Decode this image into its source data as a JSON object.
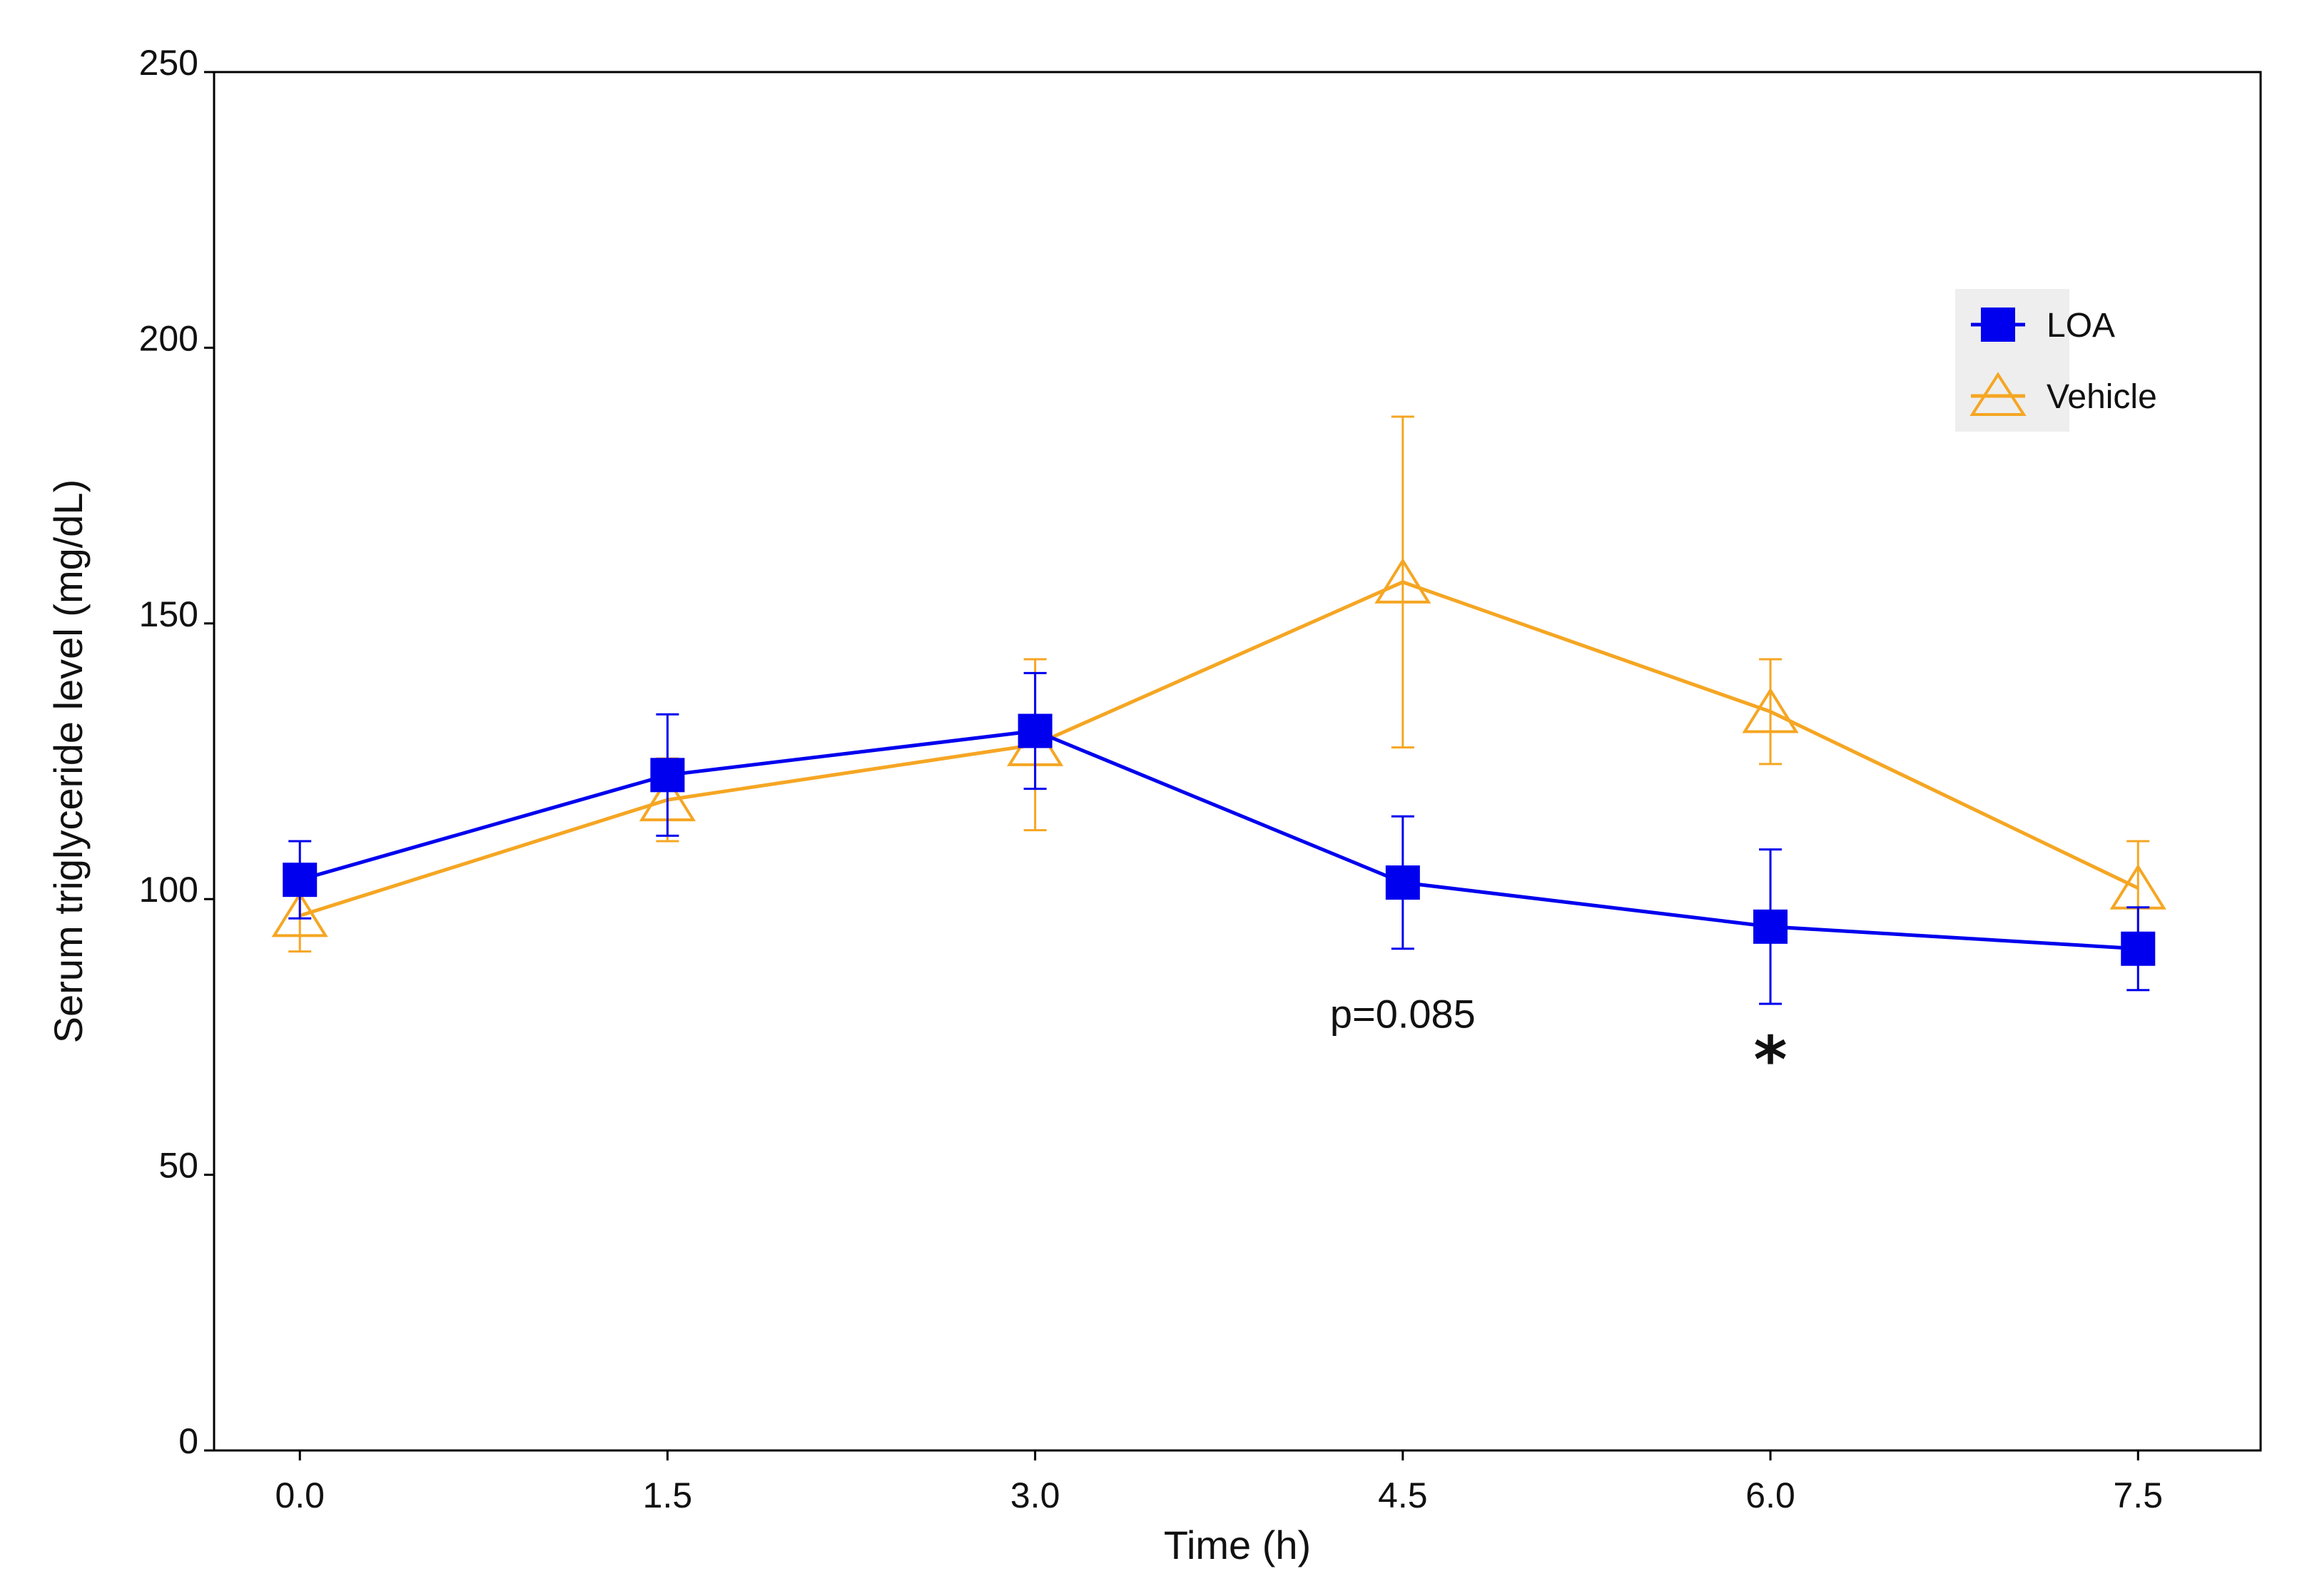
{
  "chart_data": {
    "type": "line",
    "xlabel": "Time (h)",
    "ylabel": "Serum triglyceride level (mg/dL)",
    "xlim": [
      -0.35,
      8.0
    ],
    "ylim": [
      0,
      250
    ],
    "x": [
      0.0,
      1.5,
      3.0,
      4.5,
      6.0,
      7.5
    ],
    "x_tick_labels": [
      "0.0",
      "1.5",
      "3.0",
      "4.5",
      "6.0",
      "7.5"
    ],
    "y_ticks": [
      0,
      50,
      100,
      150,
      200,
      250
    ],
    "y_tick_labels": [
      "0",
      "50",
      "100",
      "150",
      "200",
      "250"
    ],
    "grid": false,
    "legend_position": "top-right",
    "series": [
      {
        "name": "LOA",
        "color": "#0000ee",
        "marker": "filled-square",
        "values": [
          103.5,
          122.5,
          130.5,
          103,
          95,
          91
        ],
        "error": [
          7,
          11,
          10.5,
          12,
          14,
          7.5
        ]
      },
      {
        "name": "Vehicle",
        "color": "#f5a623",
        "marker": "open-triangle",
        "values": [
          97,
          118,
          128,
          157.5,
          134,
          102
        ],
        "error": [
          6.5,
          7.5,
          15.5,
          30,
          9.5,
          8.5
        ]
      }
    ],
    "annotations": [
      {
        "text": "p=0.085",
        "x": 4.5,
        "y": 79
      },
      {
        "text": "*",
        "x": 6.0,
        "y": 72
      }
    ]
  }
}
